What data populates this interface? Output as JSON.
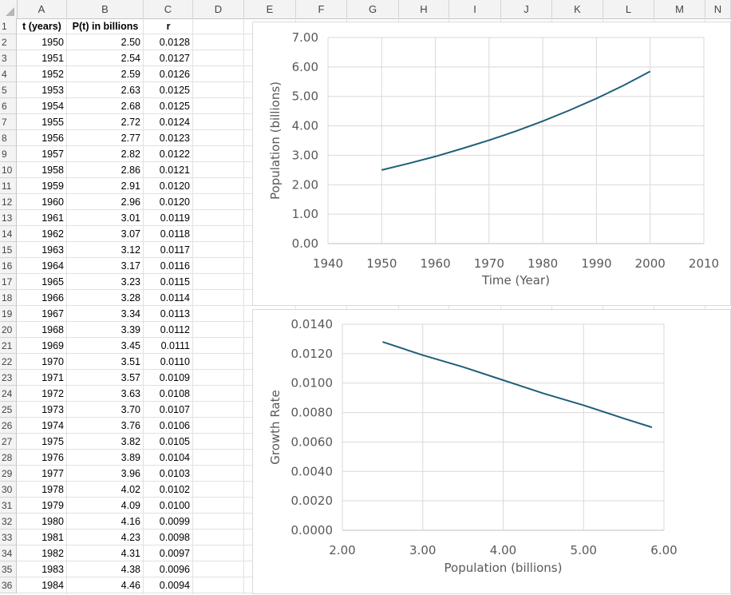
{
  "columns": [
    "A",
    "B",
    "C",
    "D",
    "E",
    "F",
    "G",
    "H",
    "I",
    "J",
    "K",
    "L",
    "M",
    "N"
  ],
  "rows": [
    "1",
    "2",
    "3",
    "4",
    "5",
    "6",
    "7",
    "8",
    "9",
    "10",
    "11",
    "12",
    "13",
    "14",
    "15",
    "16",
    "17",
    "18",
    "19",
    "20",
    "21",
    "22",
    "23",
    "24",
    "25",
    "26",
    "27",
    "28",
    "29",
    "30",
    "31",
    "32",
    "33",
    "34",
    "35",
    "36"
  ],
  "table": {
    "headers": [
      "t (years)",
      "P(t) in billions",
      "r"
    ],
    "data": [
      [
        "1950",
        "2.50",
        "0.0128"
      ],
      [
        "1951",
        "2.54",
        "0.0127"
      ],
      [
        "1952",
        "2.59",
        "0.0126"
      ],
      [
        "1953",
        "2.63",
        "0.0125"
      ],
      [
        "1954",
        "2.68",
        "0.0125"
      ],
      [
        "1955",
        "2.72",
        "0.0124"
      ],
      [
        "1956",
        "2.77",
        "0.0123"
      ],
      [
        "1957",
        "2.82",
        "0.0122"
      ],
      [
        "1958",
        "2.86",
        "0.0121"
      ],
      [
        "1959",
        "2.91",
        "0.0120"
      ],
      [
        "1960",
        "2.96",
        "0.0120"
      ],
      [
        "1961",
        "3.01",
        "0.0119"
      ],
      [
        "1962",
        "3.07",
        "0.0118"
      ],
      [
        "1963",
        "3.12",
        "0.0117"
      ],
      [
        "1964",
        "3.17",
        "0.0116"
      ],
      [
        "1965",
        "3.23",
        "0.0115"
      ],
      [
        "1966",
        "3.28",
        "0.0114"
      ],
      [
        "1967",
        "3.34",
        "0.0113"
      ],
      [
        "1968",
        "3.39",
        "0.0112"
      ],
      [
        "1969",
        "3.45",
        "0.0111"
      ],
      [
        "1970",
        "3.51",
        "0.0110"
      ],
      [
        "1971",
        "3.57",
        "0.0109"
      ],
      [
        "1972",
        "3.63",
        "0.0108"
      ],
      [
        "1973",
        "3.70",
        "0.0107"
      ],
      [
        "1974",
        "3.76",
        "0.0106"
      ],
      [
        "1975",
        "3.82",
        "0.0105"
      ],
      [
        "1976",
        "3.89",
        "0.0104"
      ],
      [
        "1977",
        "3.96",
        "0.0103"
      ],
      [
        "1978",
        "4.02",
        "0.0102"
      ],
      [
        "1979",
        "4.09",
        "0.0100"
      ],
      [
        "1980",
        "4.16",
        "0.0099"
      ],
      [
        "1981",
        "4.23",
        "0.0098"
      ],
      [
        "1982",
        "4.31",
        "0.0097"
      ],
      [
        "1983",
        "4.38",
        "0.0096"
      ],
      [
        "1984",
        "4.46",
        "0.0094"
      ]
    ]
  },
  "chart_data": [
    {
      "type": "line",
      "xlabel": "Time (Year)",
      "ylabel": "Population (billions)",
      "xlim": [
        1940,
        2010
      ],
      "ylim": [
        0,
        7
      ],
      "xticks": [
        "1940",
        "1950",
        "1960",
        "1970",
        "1980",
        "1990",
        "2000",
        "2010"
      ],
      "yticks": [
        "0.00",
        "1.00",
        "2.00",
        "3.00",
        "4.00",
        "5.00",
        "6.00",
        "7.00"
      ],
      "grid": true,
      "series": [
        {
          "x": [
            1950,
            1955,
            1960,
            1965,
            1970,
            1975,
            1980,
            1985,
            1990,
            1995,
            2000
          ],
          "y": [
            2.5,
            2.72,
            2.96,
            3.23,
            3.51,
            3.82,
            4.16,
            4.53,
            4.93,
            5.37,
            5.85
          ],
          "color": "#1f5f7a"
        }
      ]
    },
    {
      "type": "line",
      "xlabel": "Population (billions)",
      "ylabel": "Growth Rate",
      "xlim": [
        2,
        6
      ],
      "ylim": [
        0,
        0.014
      ],
      "xticks": [
        "2.00",
        "3.00",
        "4.00",
        "5.00",
        "6.00"
      ],
      "yticks": [
        "0.0000",
        "0.0020",
        "0.0040",
        "0.0060",
        "0.0080",
        "0.0100",
        "0.0120",
        "0.0140"
      ],
      "grid": true,
      "series": [
        {
          "x": [
            2.5,
            3.0,
            3.5,
            4.0,
            4.5,
            5.0,
            5.5,
            5.85
          ],
          "y": [
            0.0128,
            0.0119,
            0.0111,
            0.0102,
            0.0093,
            0.0085,
            0.0076,
            0.007
          ],
          "color": "#1f5f7a"
        }
      ]
    }
  ]
}
